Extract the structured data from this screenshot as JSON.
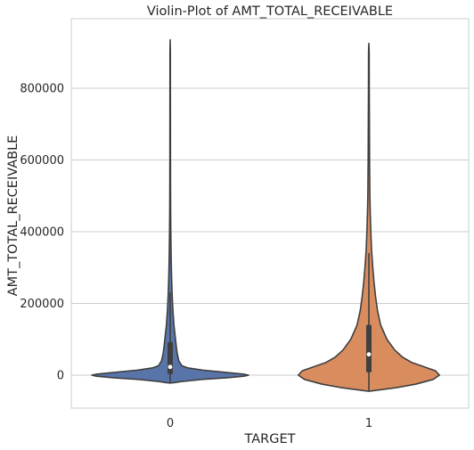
{
  "chart_data": {
    "type": "violin",
    "title": "Violin-Plot of AMT_TOTAL_RECEIVABLE",
    "xlabel": "TARGET",
    "ylabel": "AMT_TOTAL_RECEIVABLE",
    "categories": [
      "0",
      "1"
    ],
    "ylim": [
      -90000,
      1000000
    ],
    "yticks": [
      0,
      200000,
      400000,
      600000,
      800000
    ],
    "ytick_labels": [
      "0",
      "200000",
      "400000",
      "600000",
      "800000"
    ],
    "grid": "horizontal",
    "series": [
      {
        "category": "0",
        "color": "#5874a8",
        "profile": [
          [
            -22000,
            0.0
          ],
          [
            -21000,
            0.05
          ],
          [
            -18000,
            0.14
          ],
          [
            -12000,
            0.4
          ],
          [
            -7000,
            0.74
          ],
          [
            -3000,
            0.94
          ],
          [
            0,
            1.0
          ],
          [
            3000,
            0.93
          ],
          [
            8000,
            0.7
          ],
          [
            14000,
            0.42
          ],
          [
            20000,
            0.23
          ],
          [
            26000,
            0.15
          ],
          [
            40000,
            0.11
          ],
          [
            60000,
            0.09
          ],
          [
            80000,
            0.078
          ],
          [
            100000,
            0.068
          ],
          [
            140000,
            0.048
          ],
          [
            180000,
            0.035
          ],
          [
            220000,
            0.026
          ],
          [
            260000,
            0.02
          ],
          [
            300000,
            0.015
          ],
          [
            350000,
            0.011
          ],
          [
            400000,
            0.008
          ],
          [
            450000,
            0.006
          ],
          [
            500000,
            0.005
          ],
          [
            600000,
            0.004
          ],
          [
            700000,
            0.0035
          ],
          [
            800000,
            0.003
          ],
          [
            900000,
            0.0025
          ],
          [
            935000,
            0.0
          ]
        ],
        "box": {
          "q1": 3000,
          "median": 23000,
          "q3": 92000,
          "whisker_low": -22000,
          "whisker_high": 230000
        }
      },
      {
        "category": "1",
        "color": "#d98d5f",
        "profile": [
          [
            -45000,
            0.0
          ],
          [
            -42000,
            0.1
          ],
          [
            -35000,
            0.35
          ],
          [
            -25000,
            0.6
          ],
          [
            -12000,
            0.82
          ],
          [
            0,
            0.9
          ],
          [
            12000,
            0.85
          ],
          [
            22000,
            0.72
          ],
          [
            35000,
            0.55
          ],
          [
            50000,
            0.43
          ],
          [
            70000,
            0.33
          ],
          [
            100000,
            0.23
          ],
          [
            140000,
            0.15
          ],
          [
            180000,
            0.11
          ],
          [
            220000,
            0.085
          ],
          [
            260000,
            0.065
          ],
          [
            300000,
            0.05
          ],
          [
            350000,
            0.034
          ],
          [
            400000,
            0.025
          ],
          [
            450000,
            0.018
          ],
          [
            500000,
            0.013
          ],
          [
            600000,
            0.009
          ],
          [
            700000,
            0.007
          ],
          [
            800000,
            0.005
          ],
          [
            900000,
            0.004
          ],
          [
            925000,
            0.0
          ]
        ],
        "box": {
          "q1": 8000,
          "median": 58000,
          "q3": 140000,
          "whisker_low": -45000,
          "whisker_high": 340000
        }
      }
    ]
  }
}
